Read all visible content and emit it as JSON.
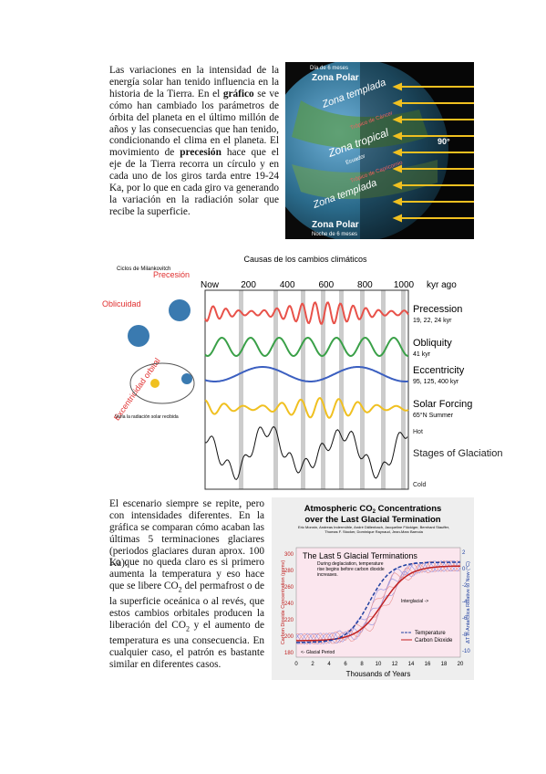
{
  "paragraph_1": [
    {
      "text": "Las variaciones en la intensidad de la energía solar han tenido influencia en la historia de la Tierra. En el "
    },
    {
      "text": "gráfico",
      "bold": true
    },
    {
      "text": " se ve cómo han cambiado los parámetros de órbita del planeta en el último millón de años y las consecuencias que han tenido, condicionando el clima en el planeta. El movimiento de "
    },
    {
      "text": "precesión",
      "bold": true
    },
    {
      "text": " hace que el eje de la Tierra recorra un círculo y en cada uno de los giros tarda entre 19-24 Ka, por lo que en cada giro va generando la variación en la radiación solar que recibe la superficie."
    }
  ],
  "earth_figure": {
    "labels": [
      "Día de 6 meses",
      "Zona Polar",
      "Zona templada",
      "Trópico de Cáncer",
      "Zona tropical",
      "Ecuador",
      "Trópico de Capricornio",
      "Zona templada",
      "Zona Polar",
      "Noche de 6 meses",
      "90°"
    ]
  },
  "milankovitch_figure": {
    "title": "Causas de los cambios climáticos",
    "cycles_label": "Ciclos de Milankovitch",
    "precesion": "Precesión",
    "oblicuidad": "Oblicuidad",
    "excentricidad": "Excentricidad orbital",
    "radiation_note": "Varía la radiación solar recibida",
    "axis_ticks": [
      "Now",
      200,
      400,
      600,
      800,
      1000
    ],
    "axis_unit": "kyr ago",
    "curves": [
      {
        "name": "Precession",
        "sub": "19, 22, 24 kyr",
        "color": "#e8524a"
      },
      {
        "name": "Obliquity",
        "sub": "41 kyr",
        "color": "#3aa048"
      },
      {
        "name": "Eccentricity",
        "sub": "95, 125, 400 kyr",
        "color": "#3b5fc0"
      },
      {
        "name": "Solar Forcing",
        "sub": "65°N Summer",
        "color": "#f0c020"
      }
    ],
    "hot": "Hot",
    "glaciation": "Stages of Glaciation",
    "cold": "Cold"
  },
  "paragraph_2": [
    {
      "text": "El escenario siempre se repite, pero con intensidades diferentes. En la gráfica se comparan cómo acaban las últimas 5 terminaciones glaciares (periodos glaciares duran aprox. 100 Ka)."
    }
  ],
  "paragraph_3": [
    {
      "text": "Lo que no queda claro es si primero aumenta la temperatura y eso hace que se libere CO"
    },
    {
      "text": "2",
      "sub": true
    },
    {
      "text": " del permafrost o de la superficie oceánica o al revés, que estos cambios orbitales producen la liberación del CO"
    },
    {
      "text": "2",
      "sub": true
    },
    {
      "text": " y el aumento de temperatura es una consecuencia. En cualquier caso, el patrón es bastante similar en diferentes casos."
    }
  ],
  "co2_figure": {
    "title": [
      "Atmospheric CO",
      "2",
      " Concentrations"
    ],
    "title_line2": "over the Last Glacial Termination",
    "authors": "Eric Monnin, Andreas Indermühle, André Dällenbach, Jacqueline Flückiger, Bernhard Stauffer, Thomas F. Stocker, Dominique Raynaud, Jean-Marc Barnola",
    "panel_title": "The Last 5 Glacial Terminations",
    "note": "During deglaciation, temperature rise begins before carbon dioxide increases.",
    "interglacial": "Interglacial ->",
    "glacial": "<- Glacial Period",
    "legend": [
      "Temperature",
      "Carbon Dioxide"
    ],
    "xticks": [
      0,
      2,
      4,
      6,
      8,
      10,
      12,
      14,
      16,
      18,
      20
    ],
    "xlabel": "Thousands of Years",
    "yticks": [
      180,
      200,
      220,
      240,
      260,
      280,
      300
    ],
    "ylabel": "Carbon Dioxide Concentration (ppmv)",
    "y2ticks": [
      2,
      0,
      -2,
      -4,
      -6,
      -8,
      -10
    ],
    "y2label": "ΔT in Antarctica Relative to Now (°C)"
  }
}
